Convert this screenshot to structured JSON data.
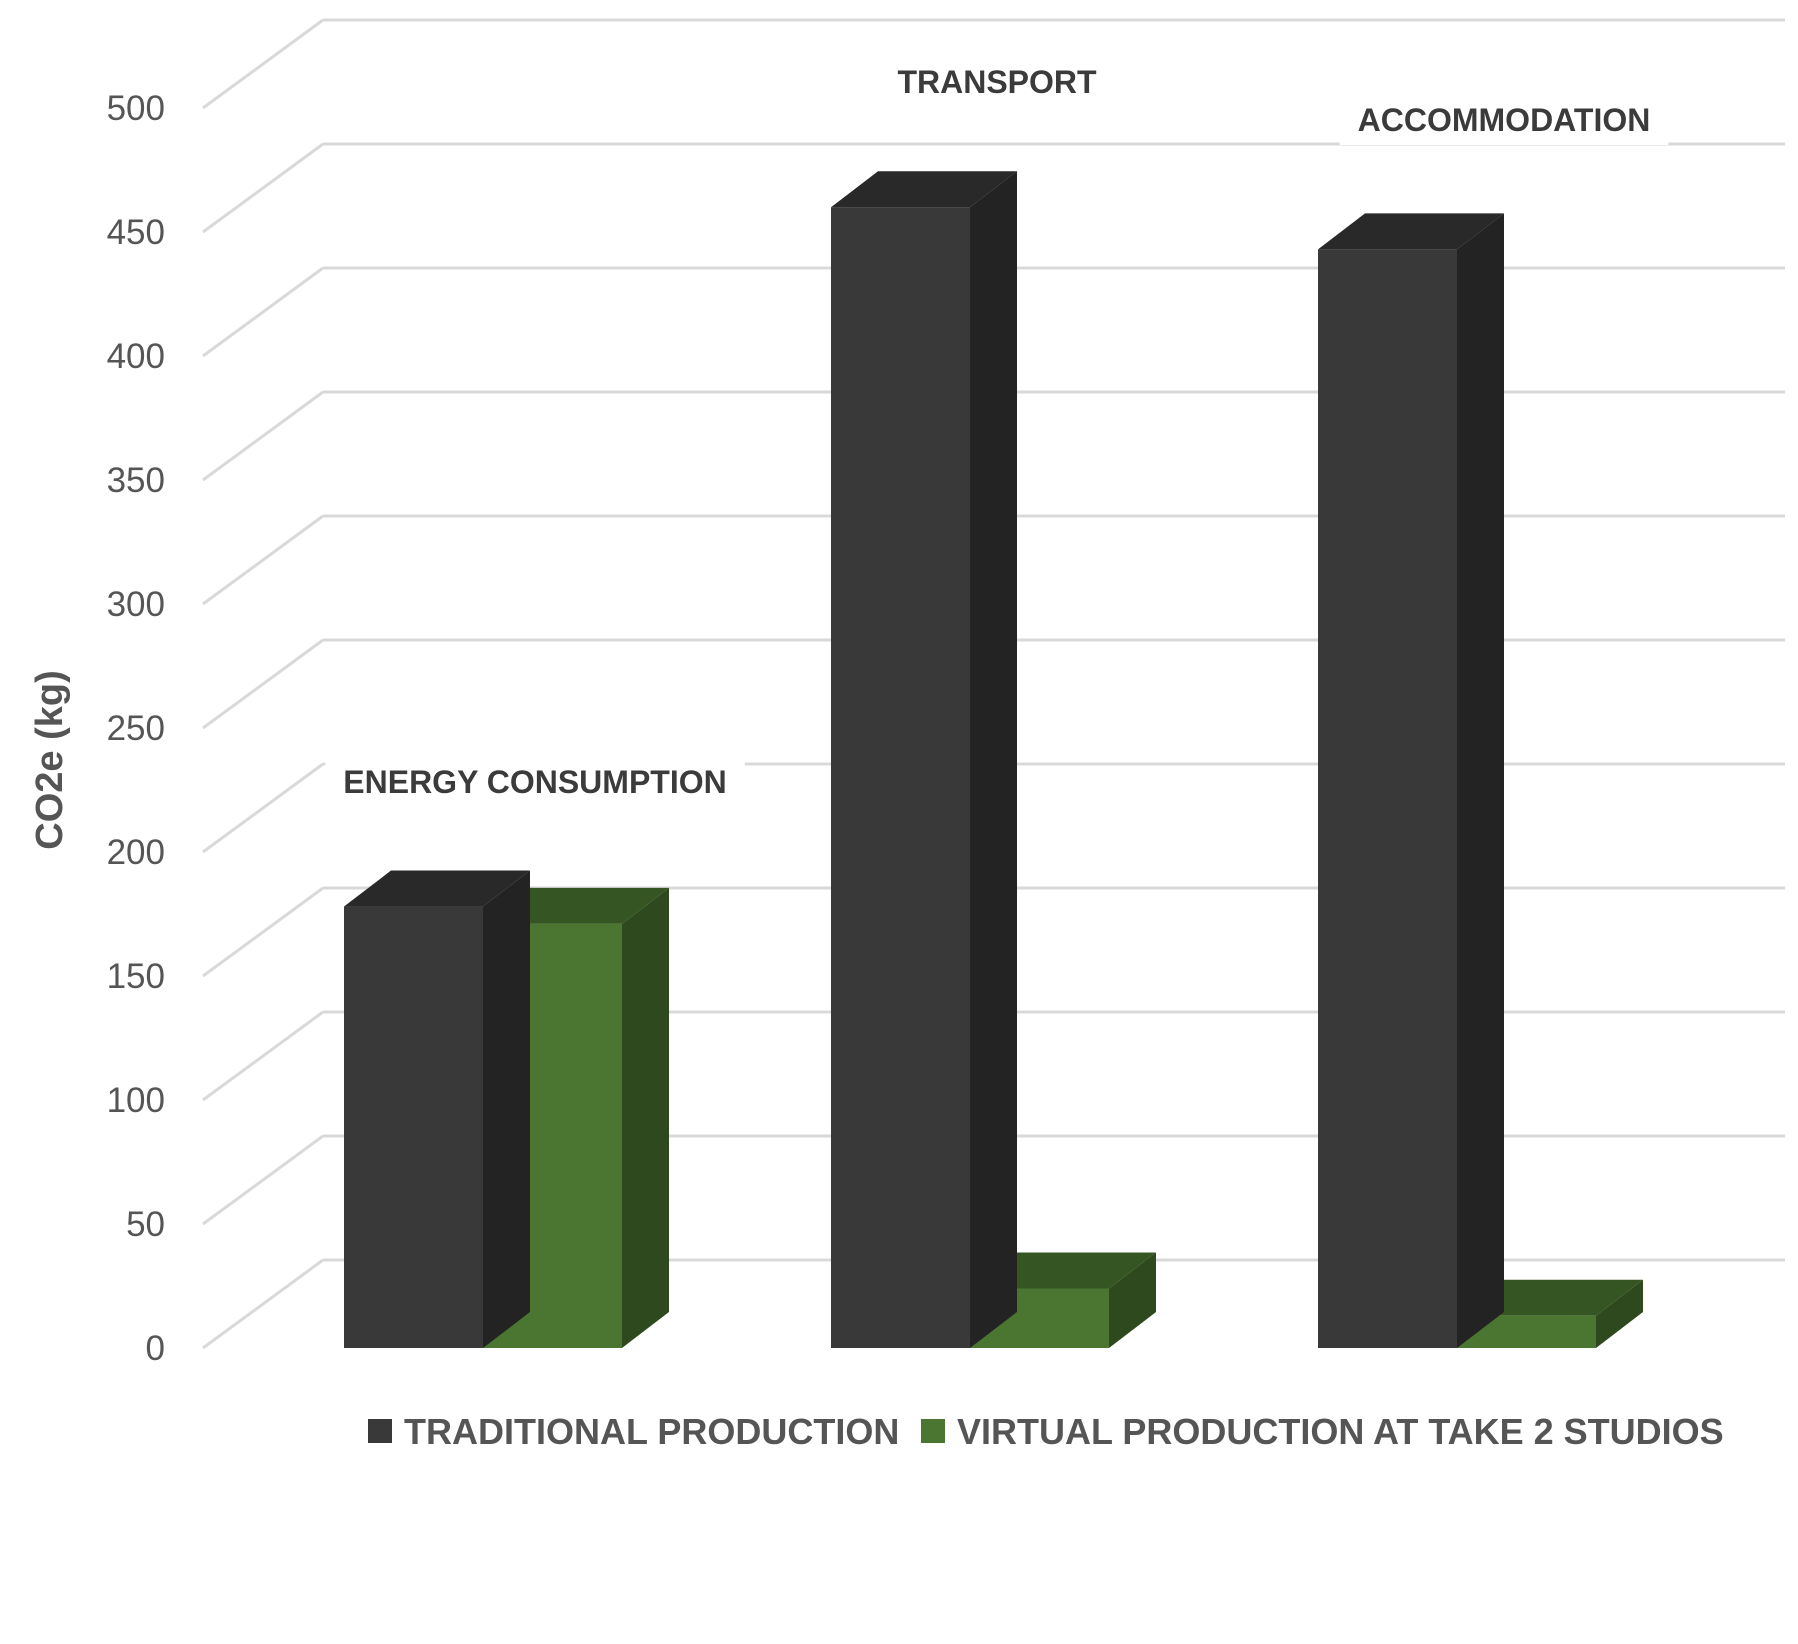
{
  "chart_data": {
    "type": "bar",
    "categories": [
      "ENERGY CONSUMPTION",
      "TRANSPORT",
      "ACCOMMODATION"
    ],
    "series": [
      {
        "name": "TRADITIONAL PRODUCTION",
        "values": [
          178,
          460,
          443
        ],
        "color": "#393939"
      },
      {
        "name": "VIRTUAL PRODUCTION AT TAKE 2 STUDIOS",
        "values": [
          171,
          24,
          13
        ],
        "color": "#4a7631"
      }
    ],
    "ylabel": "CO2e (kg)",
    "ylim": [
      0,
      500
    ],
    "yticks": [
      0,
      50,
      100,
      150,
      200,
      250,
      300,
      350,
      400,
      450,
      500
    ],
    "grid": true,
    "legend_position": "bottom",
    "style": "3d-column"
  }
}
